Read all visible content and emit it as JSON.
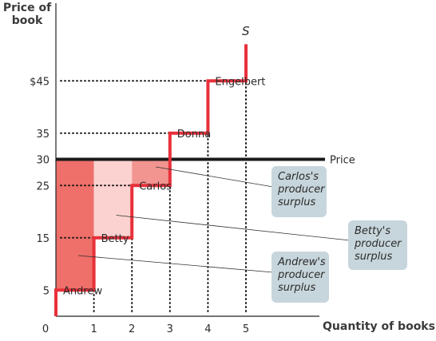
{
  "chart_data": {
    "type": "step",
    "title": "",
    "ylabel_lines": [
      "Price of",
      "book"
    ],
    "xlabel": "Quantity of books",
    "xlim": [
      0,
      5.5
    ],
    "ylim": [
      0,
      52
    ],
    "x_ticks": [
      "0",
      "1",
      "2",
      "3",
      "4",
      "5"
    ],
    "y_ticks": [
      {
        "value": 5,
        "label": "5"
      },
      {
        "value": 15,
        "label": "15"
      },
      {
        "value": 25,
        "label": "25"
      },
      {
        "value": 30,
        "label": "30"
      },
      {
        "value": 35,
        "label": "35"
      },
      {
        "value": 45,
        "label": "$45"
      }
    ],
    "supply": {
      "name": "S",
      "steps": [
        {
          "seller": "Andrew",
          "cost": 5
        },
        {
          "seller": "Betty",
          "cost": 15
        },
        {
          "seller": "Carlos",
          "cost": 25
        },
        {
          "seller": "Donna",
          "cost": 35
        },
        {
          "seller": "Engelbert",
          "cost": 45
        }
      ],
      "end_price": 52
    },
    "price": {
      "label": "Price",
      "value": 30
    },
    "surplus_labels": [
      {
        "seller": "Carlos",
        "lines": [
          "Carlos's",
          "producer",
          "surplus"
        ]
      },
      {
        "seller": "Betty",
        "lines": [
          "Betty's",
          "producer",
          "surplus"
        ]
      },
      {
        "seller": "Andrew",
        "lines": [
          "Andrew's",
          "producer",
          "surplus"
        ]
      }
    ],
    "colors": {
      "supply": "#e8303a",
      "price_line": "#1a1a1a",
      "surplus_andrew": "#ef6f6a",
      "surplus_betty": "#fbd2d0",
      "surplus_carlos": "#f29490",
      "callout_box": "#c7d6dc",
      "dots": "#1a1a1a"
    }
  }
}
